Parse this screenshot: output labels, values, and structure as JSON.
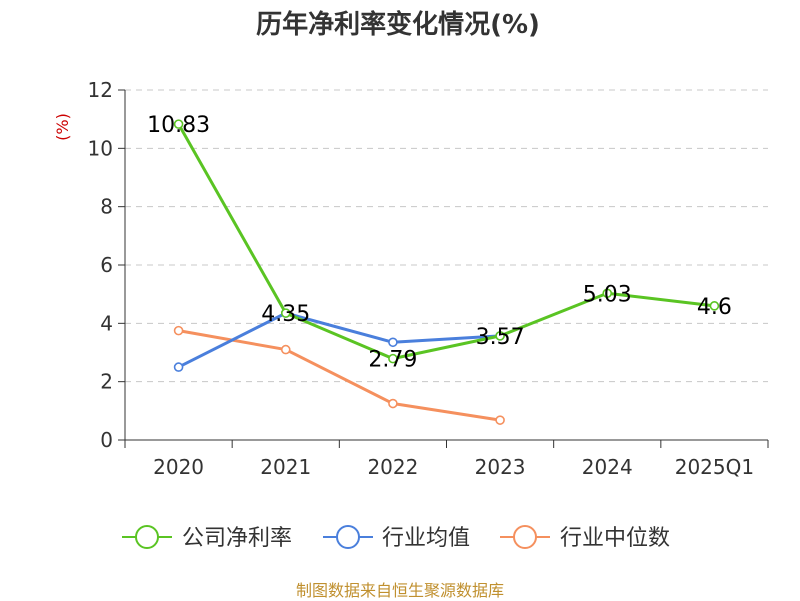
{
  "chart_data": {
    "type": "line",
    "title": "历年净利率变化情况(%)",
    "ylabel": "(%)",
    "xlabel": "",
    "categories": [
      "2020",
      "2021",
      "2022",
      "2023",
      "2024",
      "2025Q1"
    ],
    "yticks": [
      "0",
      "2",
      "4",
      "6",
      "8",
      "10",
      "12"
    ],
    "ylim": [
      0,
      12
    ],
    "grid": true,
    "legend_position": "bottom",
    "series": [
      {
        "name": "公司净利率",
        "color": "#5ac423",
        "values": [
          10.83,
          4.35,
          2.79,
          3.57,
          5.03,
          4.6
        ],
        "labels": [
          "10.83",
          "4.35",
          "2.79",
          "3.57",
          "5.03",
          "4.6"
        ]
      },
      {
        "name": "行业均值",
        "color": "#4a7fdc",
        "values": [
          2.5,
          4.35,
          3.35,
          3.57,
          null,
          null
        ]
      },
      {
        "name": "行业中位数",
        "color": "#f5905e",
        "values": [
          3.75,
          3.1,
          1.25,
          0.68,
          null,
          null
        ]
      }
    ]
  },
  "footer": {
    "source": "制图数据来自恒生聚源数据库"
  }
}
